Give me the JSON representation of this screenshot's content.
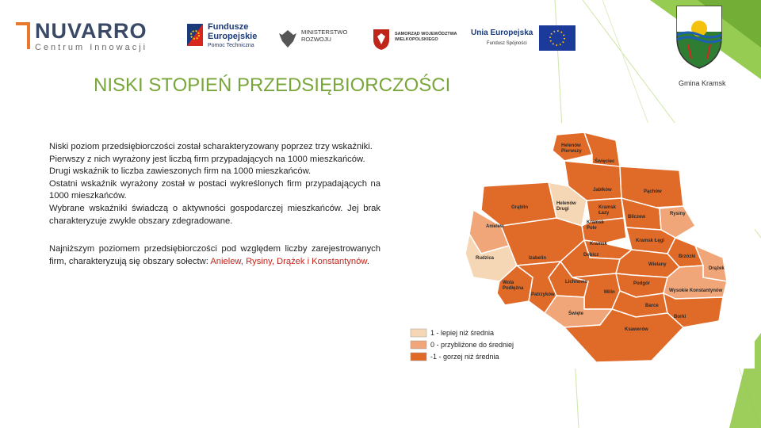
{
  "colors": {
    "title_green": "#79a63a",
    "accent_lime": "#8cc63f",
    "better": "#f6d7b5",
    "average": "#f0a679",
    "worse": "#e06a28",
    "highlight_red": "#c0251b"
  },
  "logos": {
    "nuvarro": {
      "name": "NUVARRO",
      "subtitle": "Centrum Innowacji",
      "reg": "®"
    },
    "fundusze": {
      "line1": "Fundusze",
      "line2": "Europejskie",
      "line3": "Pomoc Techniczna"
    },
    "ministerstwo": {
      "line1": "MINISTERSTWO",
      "line2": "ROZWOJU"
    },
    "samorzad": {
      "text": "SAMORZĄD WOJEWÓDZTWA WIELKOPOLSKIEGO"
    },
    "unia": {
      "line1": "Unia Europejska",
      "line2": "Fundusz Spójności"
    }
  },
  "slide": {
    "title": "NISKI STOPIEŃ PRZEDSIĘBIORCZOŚCI",
    "paragraph1_lines": [
      "Niski poziom przedsiębiorczości został scharakteryzowany poprzez trzy wskaźniki.",
      "Pierwszy z nich wyrażony jest liczbą firm przypadających na 1000 mieszkańców.",
      "Drugi wskaźnik to liczba zawieszonych firm na 1000 mieszkańców.",
      "Ostatni wskaźnik wyrażony został w postaci wykreślonych firm przypadających na 1000 mieszkańców.",
      "Wybrane wskaźniki świadczą o aktywności gospodarczej mieszkańców. Jej brak charakteryzuje zwykle obszary zdegradowane."
    ],
    "paragraph2_text": "Najniższym poziomem przedsiębiorczości pod względem liczby zarejestrowanych firm, charakteryzują się obszary sołectw: ",
    "paragraph2_highlight": "Anielew, Rysiny, Drążek i Konstantynów",
    "paragraph2_end": "."
  },
  "crest": {
    "caption": "Gmina Kramsk"
  },
  "map": {
    "regions": [
      {
        "name": "Helenów Pierwszy",
        "level": -1
      },
      {
        "name": "Święciec",
        "level": -1
      },
      {
        "name": "Jabłków",
        "level": -1
      },
      {
        "name": "Pąchów",
        "level": -1
      },
      {
        "name": "Grąblin",
        "level": -1
      },
      {
        "name": "Helenów Drugi",
        "level": 1
      },
      {
        "name": "Kramsk Łazy",
        "level": -1
      },
      {
        "name": "Bilczew",
        "level": -1
      },
      {
        "name": "Rysiny",
        "level": 0
      },
      {
        "name": "Anielew",
        "level": 0
      },
      {
        "name": "Kramsk Pole",
        "level": -1
      },
      {
        "name": "Kramsk Łęgi",
        "level": -1
      },
      {
        "name": "Kramsk",
        "level": -1
      },
      {
        "name": "Rudzica",
        "level": 1
      },
      {
        "name": "Izabelin",
        "level": -1
      },
      {
        "name": "Dębicz",
        "level": -1
      },
      {
        "name": "Brzózki",
        "level": -1
      },
      {
        "name": "Wielany",
        "level": -1
      },
      {
        "name": "Drążek",
        "level": 0
      },
      {
        "name": "Wola Podłężna",
        "level": -1
      },
      {
        "name": "Lichnowo",
        "level": -1
      },
      {
        "name": "Podgór",
        "level": -1
      },
      {
        "name": "Wysokie Konstantynów",
        "level": 0
      },
      {
        "name": "Patrzyków",
        "level": -1
      },
      {
        "name": "Milin",
        "level": -1
      },
      {
        "name": "Barce",
        "level": -1
      },
      {
        "name": "Borki",
        "level": -1
      },
      {
        "name": "Święte",
        "level": 0
      },
      {
        "name": "Ksawerów",
        "level": -1
      }
    ],
    "legend": [
      {
        "label": "1 - lepiej niż średnia",
        "color": "#f6d7b5"
      },
      {
        "label": "0 - przybliżone do średniej",
        "color": "#f0a679"
      },
      {
        "label": "-1 - gorzej niż średnia",
        "color": "#e06a28"
      }
    ]
  }
}
